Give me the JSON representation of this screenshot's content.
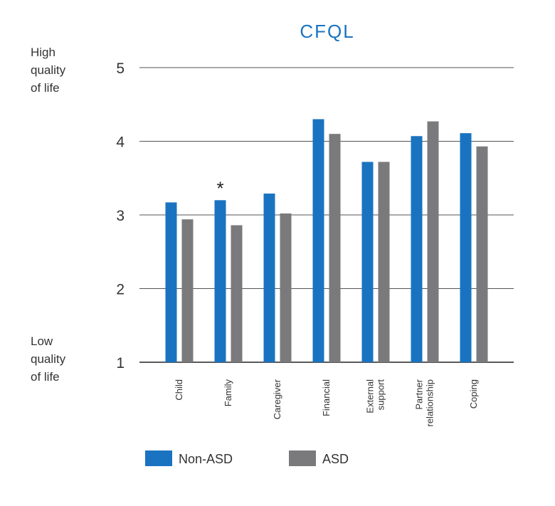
{
  "chart_data": {
    "type": "bar",
    "title": "CFQL",
    "y_top_label": [
      "High",
      "quality",
      "of life"
    ],
    "y_bottom_label": [
      "Low",
      "quality",
      "of life"
    ],
    "ylim": [
      1,
      5
    ],
    "yticks": [
      1,
      2,
      3,
      4,
      5
    ],
    "grid": true,
    "categories": [
      [
        "Child"
      ],
      [
        "Family"
      ],
      [
        "Caregiver"
      ],
      [
        "Financial"
      ],
      [
        "External",
        "support"
      ],
      [
        "Partner",
        "relationship"
      ],
      [
        "Coping"
      ]
    ],
    "series": [
      {
        "name": "Non-ASD",
        "color": "#1a73c0",
        "values": [
          3.17,
          3.2,
          3.29,
          4.3,
          3.72,
          4.07,
          4.11
        ]
      },
      {
        "name": "ASD",
        "color": "#7a7a7c",
        "values": [
          2.94,
          2.86,
          3.02,
          4.1,
          3.72,
          4.27,
          3.93
        ]
      }
    ],
    "annotations": [
      {
        "category_index": 1,
        "text": "*"
      }
    ],
    "legend_position": "bottom-left"
  }
}
